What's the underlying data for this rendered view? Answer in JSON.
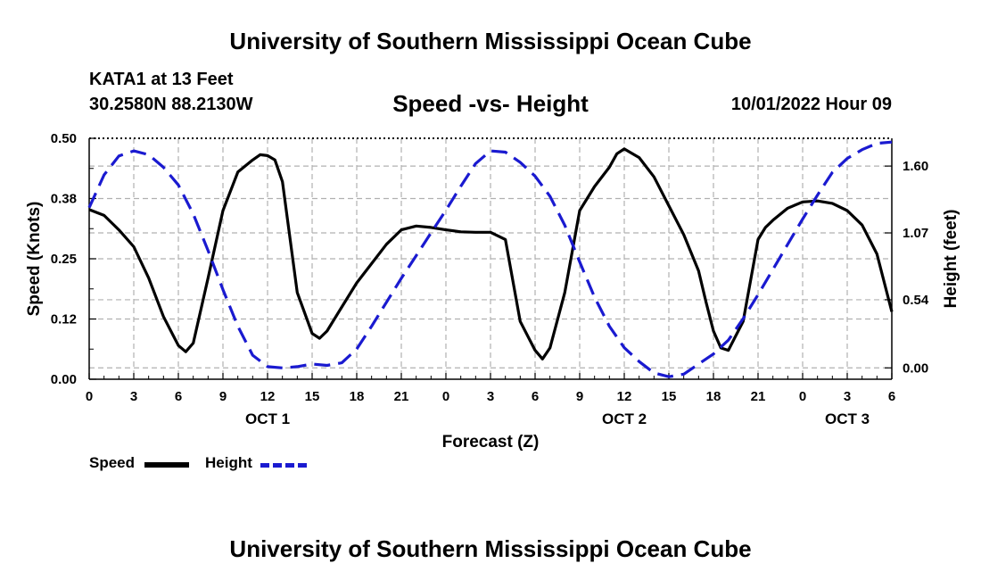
{
  "header": {
    "title": "University of Southern Mississippi Ocean Cube",
    "station": "KATA1 at 13 Feet",
    "coords": "30.2580N  88.2130W",
    "chart_title": "Speed -vs- Height",
    "datetime": "10/01/2022 Hour 09",
    "footer_title": "University of Southern Mississippi Ocean Cube"
  },
  "legend": {
    "speed_label": "Speed",
    "height_label": "Height"
  },
  "colors": {
    "speed": "#000000",
    "height": "#1a1ad0",
    "grid": "#b0b0b0"
  },
  "chart_data": {
    "type": "line",
    "title": "Speed -vs- Height",
    "xlabel": "Forecast (Z)",
    "ylabel": "Speed (Knots)",
    "y2label": "Height (feet)",
    "xlim": [
      0,
      54
    ],
    "ylim": [
      0,
      0.5
    ],
    "y2lim": [
      -0.09,
      1.82
    ],
    "x_ticks": [
      0,
      3,
      6,
      9,
      12,
      15,
      18,
      21,
      24,
      27,
      30,
      33,
      36,
      39,
      42,
      45,
      48,
      51,
      54
    ],
    "x_tick_labels": [
      "0",
      "3",
      "6",
      "9",
      "12",
      "15",
      "18",
      "21",
      "0",
      "3",
      "6",
      "9",
      "12",
      "15",
      "18",
      "21",
      "0",
      "3",
      "6"
    ],
    "date_labels": [
      {
        "x": 12,
        "label": "OCT 1"
      },
      {
        "x": 36,
        "label": "OCT 2"
      },
      {
        "x": 51,
        "label": "OCT 3"
      }
    ],
    "y_ticks": [
      0,
      0.125,
      0.25,
      0.375,
      0.5
    ],
    "y_tick_labels": [
      "0.00",
      "0.12",
      "0.25",
      "0.38",
      "0.50"
    ],
    "y2_ticks": [
      0,
      0.54,
      1.07,
      1.6
    ],
    "y2_tick_labels": [
      "0.00",
      "0.54",
      "1.07",
      "1.60"
    ],
    "series": [
      {
        "name": "Speed",
        "axis": "left",
        "style": "solid",
        "x": [
          0,
          1,
          2,
          3,
          4,
          5,
          6,
          6.5,
          7,
          8,
          9,
          10,
          11,
          11.5,
          12,
          12.5,
          13,
          14,
          15,
          15.5,
          16,
          17,
          18,
          19,
          20,
          21,
          22,
          23,
          24,
          25,
          26,
          27,
          28,
          29,
          30,
          30.5,
          31,
          32,
          33,
          34,
          35,
          35.5,
          36,
          37,
          38,
          39,
          40,
          41,
          41.5,
          42,
          42.5,
          43,
          44,
          45,
          45.5,
          46,
          47,
          48,
          49,
          50,
          51,
          52,
          53,
          54
        ],
        "y": [
          0.352,
          0.34,
          0.31,
          0.275,
          0.21,
          0.13,
          0.07,
          0.057,
          0.075,
          0.21,
          0.35,
          0.43,
          0.455,
          0.466,
          0.464,
          0.455,
          0.41,
          0.18,
          0.095,
          0.085,
          0.1,
          0.15,
          0.2,
          0.24,
          0.28,
          0.31,
          0.318,
          0.315,
          0.31,
          0.306,
          0.305,
          0.305,
          0.29,
          0.12,
          0.06,
          0.042,
          0.065,
          0.18,
          0.35,
          0.4,
          0.44,
          0.468,
          0.478,
          0.46,
          0.42,
          0.36,
          0.3,
          0.225,
          0.16,
          0.1,
          0.065,
          0.06,
          0.12,
          0.29,
          0.315,
          0.33,
          0.355,
          0.368,
          0.37,
          0.365,
          0.35,
          0.32,
          0.26,
          0.14
        ]
      },
      {
        "name": "Height",
        "axis": "right",
        "style": "dashed",
        "x": [
          0,
          1,
          2,
          3,
          4,
          5,
          6,
          7,
          8,
          9,
          10,
          11,
          12,
          13,
          14,
          15,
          16,
          17,
          18,
          19,
          20,
          21,
          22,
          23,
          24,
          25,
          26,
          27,
          28,
          29,
          30,
          31,
          32,
          33,
          34,
          35,
          36,
          37,
          38,
          39,
          40,
          41,
          42,
          43,
          44,
          45,
          46,
          47,
          48,
          49,
          50,
          51,
          52,
          53,
          54
        ],
        "y": [
          1.27,
          1.53,
          1.68,
          1.72,
          1.69,
          1.59,
          1.45,
          1.22,
          0.93,
          0.62,
          0.33,
          0.1,
          0.01,
          0.0,
          0.01,
          0.03,
          0.02,
          0.04,
          0.15,
          0.33,
          0.52,
          0.71,
          0.89,
          1.07,
          1.25,
          1.44,
          1.62,
          1.72,
          1.71,
          1.63,
          1.52,
          1.36,
          1.13,
          0.84,
          0.56,
          0.33,
          0.16,
          0.05,
          -0.04,
          -0.07,
          -0.05,
          0.03,
          0.11,
          0.22,
          0.39,
          0.58,
          0.78,
          0.98,
          1.18,
          1.37,
          1.55,
          1.66,
          1.73,
          1.78,
          1.79
        ]
      }
    ]
  }
}
